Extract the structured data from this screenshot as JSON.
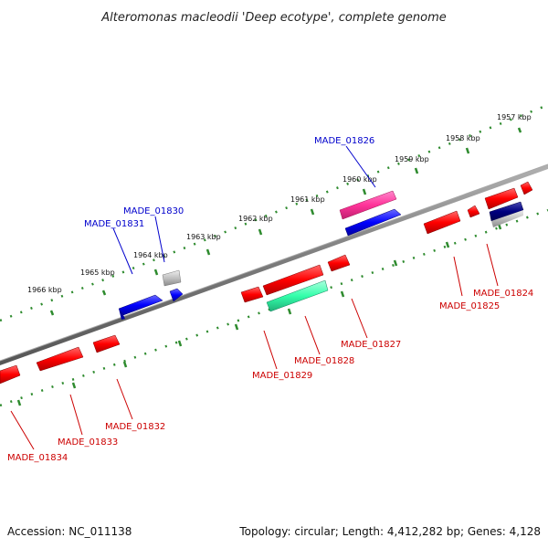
{
  "title": "Alteromonas macleodii 'Deep ecotype', complete genome",
  "footer": {
    "accession": "Accession: NC_011138",
    "topology": "Topology: circular; Length: 4,412,282 bp; Genes: 4,128"
  },
  "scale_labels": [
    "1957 kbp",
    "1958 kbp",
    "1959 kbp",
    "1960 kbp",
    "1961 kbp",
    "1962 kbp",
    "1963 kbp",
    "1964 kbp",
    "1965 kbp",
    "1966 kbp"
  ],
  "genes": [
    {
      "id": "MADE_01824",
      "strand": "minus",
      "color": "#cc0000"
    },
    {
      "id": "MADE_01825",
      "strand": "minus",
      "color": "#cc0000"
    },
    {
      "id": "MADE_01826",
      "strand": "plus",
      "color": "#0000aa"
    },
    {
      "id": "MADE_01827",
      "strand": "minus",
      "color": "#cc0000"
    },
    {
      "id": "MADE_01828",
      "strand": "minus",
      "color": "#cc0000"
    },
    {
      "id": "MADE_01829",
      "strand": "minus",
      "color": "#cc0000"
    },
    {
      "id": "MADE_01830",
      "strand": "plus",
      "color": "#0000aa"
    },
    {
      "id": "MADE_01831",
      "strand": "plus",
      "color": "#0000aa"
    },
    {
      "id": "MADE_01832",
      "strand": "minus",
      "color": "#cc0000"
    },
    {
      "id": "MADE_01833",
      "strand": "minus",
      "color": "#cc0000"
    },
    {
      "id": "MADE_01834",
      "strand": "minus",
      "color": "#cc0000"
    }
  ],
  "colors": {
    "backbone": "#808080",
    "scale": "#2e8b2e",
    "plus_strand": "#0000ff",
    "minus_strand": "#ff0000",
    "rrna": "#ff3399",
    "trna": "#33ffaa",
    "pseudo": "#000080",
    "other": "#c0c0c0"
  }
}
